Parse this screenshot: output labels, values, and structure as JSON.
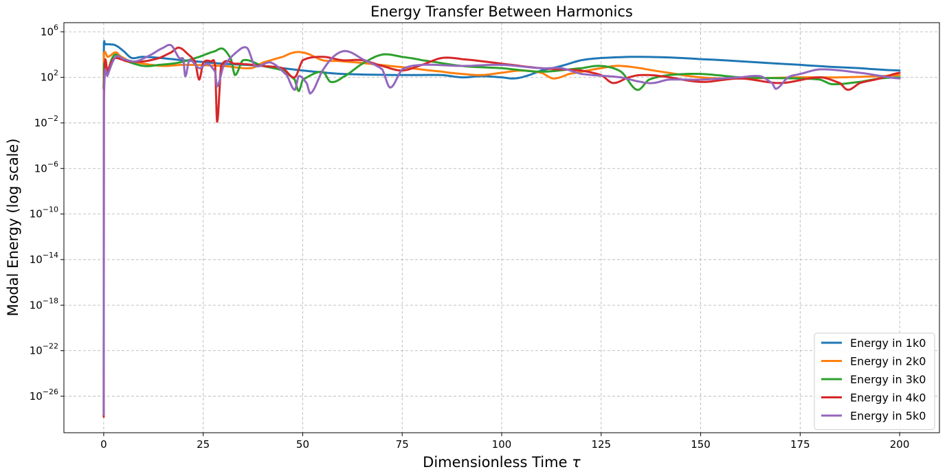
{
  "chart_data": {
    "type": "line",
    "title": "Energy Transfer Between Harmonics",
    "xlabel": "Dimensionless Time",
    "xlabel_symbol": "τ",
    "ylabel": "Modal Energy (log scale)",
    "xlim": [
      -10,
      210
    ],
    "ylim_log10": [
      -29.2,
      6.8
    ],
    "yscale": "log",
    "grid": true,
    "legend_position": "lower-right",
    "x_ticks": [
      {
        "value": 0,
        "label": "0"
      },
      {
        "value": 25,
        "label": "25"
      },
      {
        "value": 50,
        "label": "50"
      },
      {
        "value": 75,
        "label": "75"
      },
      {
        "value": 100,
        "label": "100"
      },
      {
        "value": 125,
        "label": "125"
      },
      {
        "value": 150,
        "label": "150"
      },
      {
        "value": 175,
        "label": "175"
      },
      {
        "value": 200,
        "label": "200"
      }
    ],
    "y_ticks": [
      {
        "exp": 6,
        "base": "10",
        "sup": "6"
      },
      {
        "exp": 2,
        "base": "10",
        "sup": "2"
      },
      {
        "exp": -2,
        "base": "10",
        "sup": "−2"
      },
      {
        "exp": -6,
        "base": "10",
        "sup": "−6"
      },
      {
        "exp": -10,
        "base": "10",
        "sup": "−10"
      },
      {
        "exp": -14,
        "base": "10",
        "sup": "−14"
      },
      {
        "exp": -18,
        "base": "10",
        "sup": "−18"
      },
      {
        "exp": -22,
        "base": "10",
        "sup": "−22"
      },
      {
        "exp": -26,
        "base": "10",
        "sup": "−26"
      }
    ],
    "series": [
      {
        "name": "Energy in 1k0",
        "color": "#1f77b4",
        "points": [
          [
            0,
            1.0
          ],
          [
            0.05,
            4.9
          ],
          [
            0.3,
            4.9
          ],
          [
            1.5,
            4.9
          ],
          [
            3,
            4.8
          ],
          [
            5,
            4.3
          ],
          [
            7,
            3.7
          ],
          [
            10,
            3.8
          ],
          [
            20,
            3.5
          ],
          [
            30,
            3.2
          ],
          [
            40,
            3.0
          ],
          [
            50,
            2.6
          ],
          [
            60,
            2.3
          ],
          [
            75,
            2.2
          ],
          [
            85,
            2.2
          ],
          [
            90,
            2.0
          ],
          [
            95,
            2.1
          ],
          [
            100,
            2.0
          ],
          [
            103,
            1.9
          ],
          [
            106,
            2.1
          ],
          [
            110,
            2.6
          ],
          [
            115,
            3.0
          ],
          [
            120,
            3.5
          ],
          [
            125,
            3.7
          ],
          [
            135,
            3.8
          ],
          [
            150,
            3.6
          ],
          [
            175,
            3.1
          ],
          [
            190,
            2.8
          ],
          [
            200,
            2.6
          ]
        ]
      },
      {
        "name": "Energy in 2k0",
        "color": "#ff7f0e",
        "points": [
          [
            0,
            1.0
          ],
          [
            0.05,
            4.1
          ],
          [
            1,
            3.8
          ],
          [
            3,
            4.2
          ],
          [
            4,
            3.9
          ],
          [
            6,
            3.5
          ],
          [
            10,
            3.2
          ],
          [
            15,
            3.0
          ],
          [
            20,
            3.1
          ],
          [
            30,
            3.0
          ],
          [
            37,
            2.8
          ],
          [
            40,
            3.3
          ],
          [
            45,
            3.8
          ],
          [
            48,
            4.2
          ],
          [
            51,
            4.1
          ],
          [
            55,
            3.5
          ],
          [
            60,
            3.4
          ],
          [
            75,
            2.9
          ],
          [
            85,
            2.5
          ],
          [
            90,
            2.3
          ],
          [
            95,
            2.2
          ],
          [
            100,
            2.4
          ],
          [
            105,
            2.6
          ],
          [
            110,
            2.4
          ],
          [
            113,
            1.9
          ],
          [
            117,
            2.3
          ],
          [
            125,
            2.8
          ],
          [
            130,
            3.0
          ],
          [
            140,
            2.5
          ],
          [
            150,
            2.0
          ],
          [
            160,
            1.9
          ],
          [
            175,
            2.0
          ],
          [
            185,
            2.0
          ],
          [
            195,
            2.1
          ],
          [
            200,
            2.2
          ]
        ]
      },
      {
        "name": "Energy in 3k0",
        "color": "#2ca02c",
        "points": [
          [
            0,
            1.0
          ],
          [
            0.05,
            3.2
          ],
          [
            1,
            2.6
          ],
          [
            2,
            3.6
          ],
          [
            3,
            4.0
          ],
          [
            5,
            3.5
          ],
          [
            10,
            3.0
          ],
          [
            14,
            3.1
          ],
          [
            19,
            3.3
          ],
          [
            24,
            3.8
          ],
          [
            28,
            4.3
          ],
          [
            30,
            4.5
          ],
          [
            32,
            3.6
          ],
          [
            33,
            2.2
          ],
          [
            35,
            3.5
          ],
          [
            40,
            3.0
          ],
          [
            45,
            2.6
          ],
          [
            48,
            1.8
          ],
          [
            49,
            0.8
          ],
          [
            50,
            1.8
          ],
          [
            55,
            2.5
          ],
          [
            57,
            1.6
          ],
          [
            60,
            2.0
          ],
          [
            65,
            3.2
          ],
          [
            70,
            4.0
          ],
          [
            75,
            3.8
          ],
          [
            80,
            3.5
          ],
          [
            90,
            3.0
          ],
          [
            100,
            2.8
          ],
          [
            110,
            2.5
          ],
          [
            120,
            2.8
          ],
          [
            125,
            3.0
          ],
          [
            130,
            2.5
          ],
          [
            134,
            0.9
          ],
          [
            137,
            1.8
          ],
          [
            142,
            2.2
          ],
          [
            150,
            2.3
          ],
          [
            160,
            2.0
          ],
          [
            175,
            1.9
          ],
          [
            180,
            1.8
          ],
          [
            183,
            1.4
          ],
          [
            190,
            1.6
          ],
          [
            195,
            1.9
          ],
          [
            200,
            2.0
          ]
        ]
      },
      {
        "name": "Energy in 4k0",
        "color": "#d62728",
        "points": [
          [
            0,
            -27.8
          ],
          [
            0.05,
            1.0
          ],
          [
            1,
            2.5
          ],
          [
            2,
            3.4
          ],
          [
            3,
            3.7
          ],
          [
            6,
            3.4
          ],
          [
            10,
            3.4
          ],
          [
            14,
            3.7
          ],
          [
            17,
            4.2
          ],
          [
            19,
            4.6
          ],
          [
            22,
            3.8
          ],
          [
            23,
            3.3
          ],
          [
            24,
            1.8
          ],
          [
            25,
            3.3
          ],
          [
            27,
            3.4
          ],
          [
            28,
            3.0
          ],
          [
            28.5,
            -1.9
          ],
          [
            29.5,
            3.0
          ],
          [
            33,
            3.2
          ],
          [
            40,
            3.0
          ],
          [
            45,
            2.8
          ],
          [
            48,
            2.0
          ],
          [
            50,
            3.5
          ],
          [
            55,
            3.8
          ],
          [
            60,
            3.5
          ],
          [
            65,
            3.5
          ],
          [
            70,
            3.0
          ],
          [
            75,
            2.6
          ],
          [
            80,
            3.1
          ],
          [
            85,
            3.7
          ],
          [
            90,
            3.6
          ],
          [
            100,
            3.2
          ],
          [
            110,
            2.8
          ],
          [
            120,
            2.6
          ],
          [
            125,
            2.2
          ],
          [
            128,
            1.5
          ],
          [
            132,
            2.0
          ],
          [
            135,
            2.2
          ],
          [
            140,
            2.1
          ],
          [
            150,
            1.6
          ],
          [
            160,
            1.9
          ],
          [
            170,
            1.5
          ],
          [
            180,
            2.0
          ],
          [
            185,
            1.5
          ],
          [
            187,
            0.9
          ],
          [
            190,
            1.5
          ],
          [
            195,
            1.9
          ],
          [
            200,
            2.4
          ]
        ]
      },
      {
        "name": "Energy in 5k0",
        "color": "#9467bd",
        "points": [
          [
            0,
            -27.6
          ],
          [
            0.05,
            0.0
          ],
          [
            1,
            2.2
          ],
          [
            3,
            3.8
          ],
          [
            5,
            3.6
          ],
          [
            8,
            3.4
          ],
          [
            12,
            4.0
          ],
          [
            15,
            4.6
          ],
          [
            17,
            4.8
          ],
          [
            19,
            3.7
          ],
          [
            20,
            3.6
          ],
          [
            20.5,
            2.1
          ],
          [
            21.5,
            3.5
          ],
          [
            24,
            2.8
          ],
          [
            26,
            3.2
          ],
          [
            28,
            2.5
          ],
          [
            28.5,
            1.2
          ],
          [
            30,
            2.9
          ],
          [
            33,
            4.1
          ],
          [
            36,
            4.6
          ],
          [
            38,
            3.0
          ],
          [
            42,
            3.3
          ],
          [
            46,
            2.2
          ],
          [
            48,
            0.9
          ],
          [
            49,
            2.1
          ],
          [
            51,
            1.5
          ],
          [
            52,
            0.6
          ],
          [
            55,
            2.6
          ],
          [
            58,
            3.9
          ],
          [
            61,
            4.3
          ],
          [
            65,
            3.6
          ],
          [
            70,
            2.7
          ],
          [
            72,
            1.1
          ],
          [
            75,
            2.7
          ],
          [
            80,
            3.1
          ],
          [
            90,
            3.0
          ],
          [
            100,
            3.1
          ],
          [
            110,
            2.8
          ],
          [
            115,
            2.8
          ],
          [
            120,
            2.3
          ],
          [
            130,
            2.0
          ],
          [
            135,
            1.6
          ],
          [
            138,
            1.5
          ],
          [
            142,
            1.8
          ],
          [
            150,
            1.8
          ],
          [
            160,
            2.0
          ],
          [
            165,
            2.1
          ],
          [
            168,
            1.5
          ],
          [
            169,
            1.0
          ],
          [
            172,
            2.0
          ],
          [
            175,
            2.3
          ],
          [
            180,
            2.7
          ],
          [
            190,
            2.4
          ],
          [
            200,
            1.9
          ]
        ]
      }
    ]
  }
}
